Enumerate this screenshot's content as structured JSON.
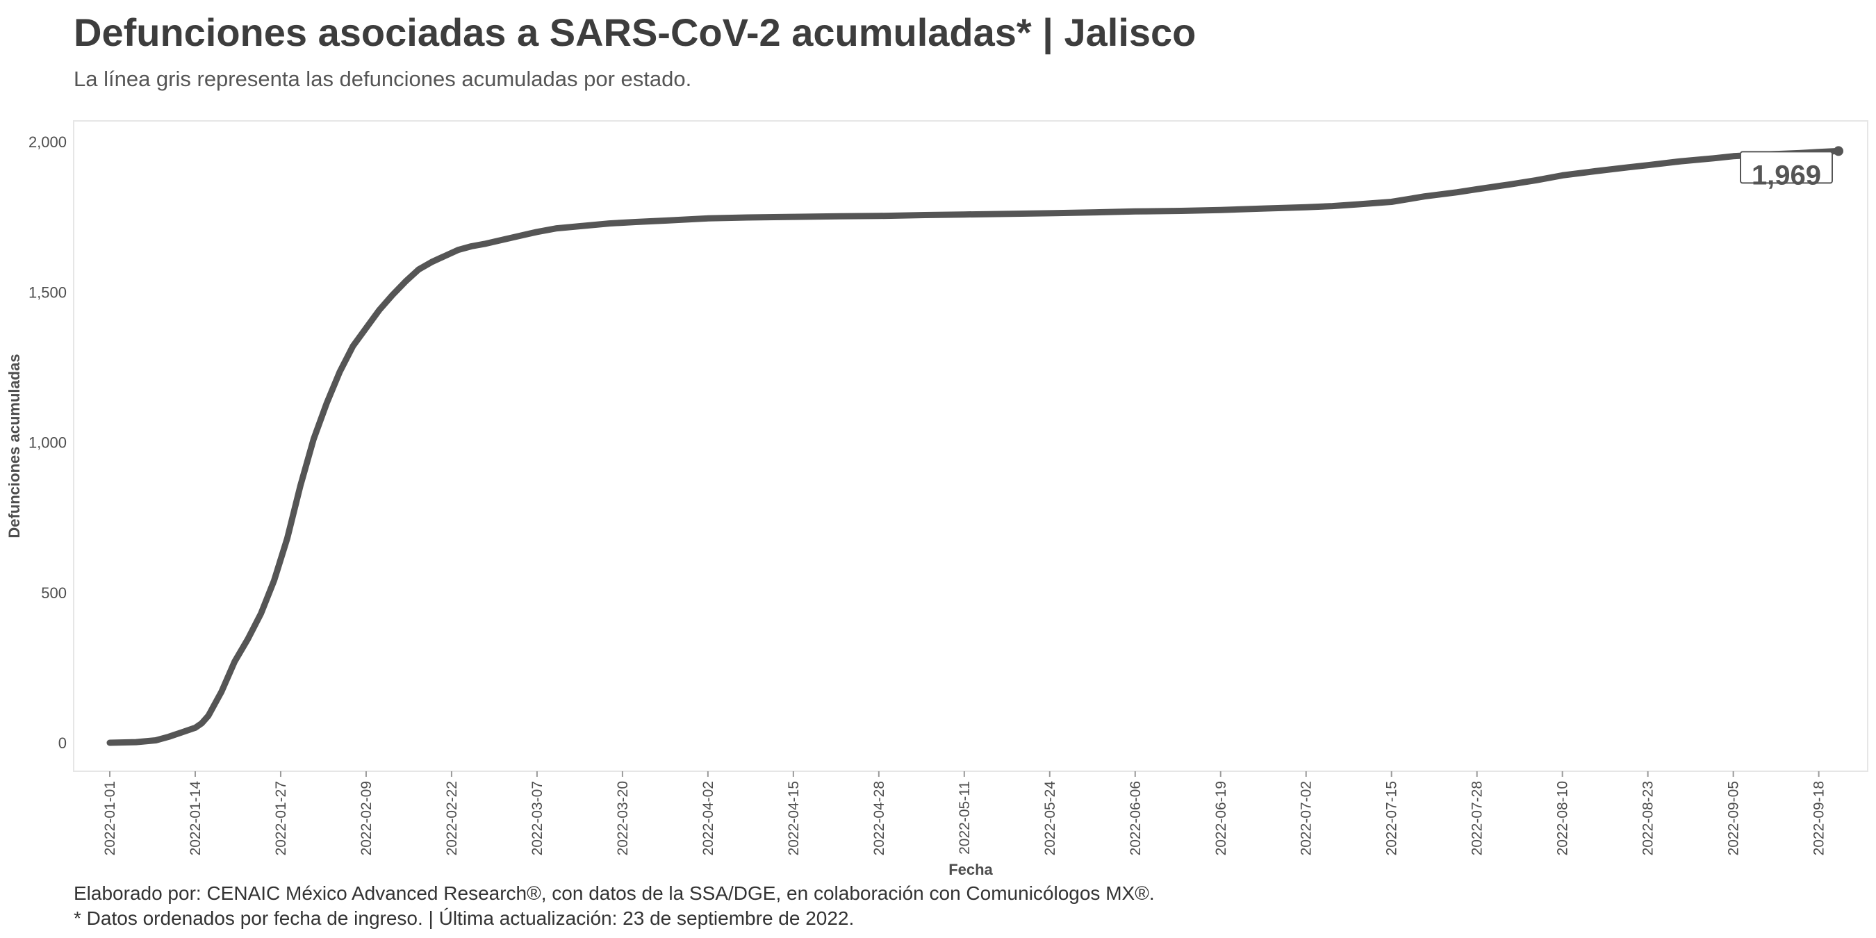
{
  "header": {
    "title": "Defunciones asociadas a SARS-CoV-2 acumuladas* | Jalisco",
    "subtitle": "La línea gris representa las defunciones acumuladas por estado."
  },
  "footer": {
    "line1": "Elaborado por: CENAIC México Advanced Research®, con datos de la SSA/DGE, en colaboración con Comunicólogos MX®.",
    "line2": "* Datos ordenados por fecha de ingreso. | Última actualización: 23 de septiembre de 2022."
  },
  "chart_data": {
    "type": "line",
    "title": "Defunciones asociadas a SARS-CoV-2 acumuladas* | Jalisco",
    "subtitle": "La línea gris representa las defunciones acumuladas por estado.",
    "xlabel": "Fecha",
    "ylabel": "Defunciones acumuladas",
    "xlim": [
      "2022-01-01",
      "2022-09-21"
    ],
    "ylim": [
      0,
      2000
    ],
    "grid": false,
    "line_color": "#555555",
    "x_ticks": [
      "2022-01-01",
      "2022-01-14",
      "2022-01-27",
      "2022-02-09",
      "2022-02-22",
      "2022-03-07",
      "2022-03-20",
      "2022-04-02",
      "2022-04-15",
      "2022-04-28",
      "2022-05-11",
      "2022-05-24",
      "2022-06-06",
      "2022-06-19",
      "2022-07-02",
      "2022-07-15",
      "2022-07-28",
      "2022-08-10",
      "2022-08-23",
      "2022-09-05",
      "2022-09-18"
    ],
    "y_ticks": [
      {
        "value": 0,
        "label": "0"
      },
      {
        "value": 500,
        "label": "500"
      },
      {
        "value": 1000,
        "label": "1,000"
      },
      {
        "value": 1500,
        "label": "1,500"
      },
      {
        "value": 2000,
        "label": "2,000"
      }
    ],
    "end_label": "1,969",
    "series": [
      {
        "x": [
          "2022-01-01",
          "2022-01-05",
          "2022-01-08",
          "2022-01-10",
          "2022-01-12",
          "2022-01-14",
          "2022-01-15",
          "2022-01-16",
          "2022-01-18",
          "2022-01-20",
          "2022-01-22",
          "2022-01-24",
          "2022-01-26",
          "2022-01-28",
          "2022-01-30",
          "2022-02-01",
          "2022-02-03",
          "2022-02-05",
          "2022-02-07",
          "2022-02-09",
          "2022-02-11",
          "2022-02-13",
          "2022-02-15",
          "2022-02-17",
          "2022-02-19",
          "2022-02-21",
          "2022-02-23",
          "2022-02-25",
          "2022-02-27",
          "2022-03-01",
          "2022-03-04",
          "2022-03-07",
          "2022-03-10",
          "2022-03-14",
          "2022-03-18",
          "2022-03-22",
          "2022-03-27",
          "2022-04-02",
          "2022-04-08",
          "2022-04-15",
          "2022-04-22",
          "2022-04-28",
          "2022-05-05",
          "2022-05-11",
          "2022-05-18",
          "2022-05-24",
          "2022-05-31",
          "2022-06-06",
          "2022-06-13",
          "2022-06-19",
          "2022-06-26",
          "2022-07-02",
          "2022-07-06",
          "2022-07-10",
          "2022-07-15",
          "2022-07-20",
          "2022-07-25",
          "2022-07-28",
          "2022-08-02",
          "2022-08-06",
          "2022-08-10",
          "2022-08-15",
          "2022-08-20",
          "2022-08-23",
          "2022-08-28",
          "2022-09-02",
          "2022-09-05",
          "2022-09-10",
          "2022-09-15",
          "2022-09-18",
          "2022-09-21"
        ],
        "y": [
          0,
          2,
          8,
          20,
          35,
          50,
          65,
          90,
          170,
          270,
          345,
          430,
          540,
          680,
          855,
          1010,
          1130,
          1235,
          1320,
          1380,
          1440,
          1490,
          1535,
          1575,
          1600,
          1620,
          1640,
          1652,
          1660,
          1670,
          1685,
          1700,
          1712,
          1720,
          1728,
          1733,
          1738,
          1745,
          1748,
          1750,
          1752,
          1753,
          1756,
          1758,
          1760,
          1762,
          1765,
          1768,
          1770,
          1773,
          1778,
          1782,
          1786,
          1792,
          1800,
          1818,
          1832,
          1842,
          1858,
          1872,
          1888,
          1902,
          1915,
          1922,
          1935,
          1945,
          1952,
          1958,
          1962,
          1966,
          1969
        ]
      }
    ]
  }
}
